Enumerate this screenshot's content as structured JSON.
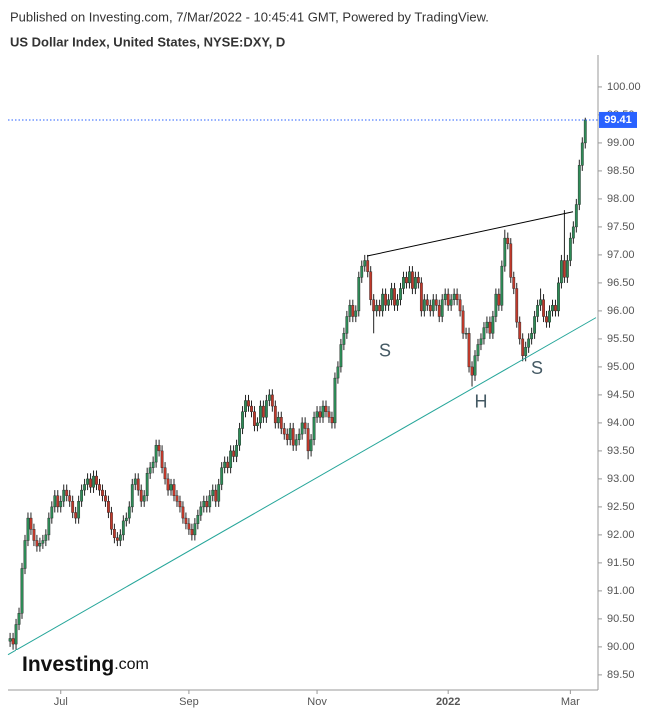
{
  "header": {
    "published": "Published on Investing.com, 7/Mar/2022 - 10:45:41 GMT, Powered by TradingView.",
    "logo_brand": "Investing",
    "logo_suffix": ".com"
  },
  "chart_data": {
    "type": "candlestick",
    "title": "US Dollar Index, United States, NYSE:DXY, D",
    "open": [
      90.1,
      90.15,
      90.05,
      90.4,
      90.6,
      91.4,
      91.9,
      92.3,
      92.1,
      91.9,
      91.8,
      91.85,
      91.9,
      92.0,
      92.3,
      92.5,
      92.7,
      92.5,
      92.6,
      92.8,
      92.7,
      92.6,
      92.4,
      92.3,
      92.6,
      92.8,
      92.9,
      93.0,
      92.85,
      93.05,
      92.9,
      92.8,
      92.7,
      92.6,
      92.4,
      92.1,
      91.95,
      91.9,
      92.0,
      92.25,
      92.3,
      92.5,
      92.9,
      93.0,
      92.8,
      92.6,
      92.7,
      93.1,
      93.2,
      93.3,
      93.6,
      93.5,
      93.2,
      93.0,
      92.8,
      92.9,
      92.7,
      92.6,
      92.5,
      92.3,
      92.2,
      92.1,
      92.0,
      92.2,
      92.35,
      92.5,
      92.6,
      92.5,
      92.7,
      92.8,
      92.6,
      92.9,
      93.2,
      93.3,
      93.2,
      93.5,
      93.4,
      93.6,
      93.9,
      94.2,
      94.4,
      94.3,
      94.2,
      93.95,
      94.0,
      94.3,
      94.1,
      94.4,
      94.5,
      94.3,
      94.0,
      94.1,
      93.9,
      93.8,
      93.7,
      93.9,
      93.6,
      93.7,
      93.8,
      94.0,
      93.9,
      93.5,
      93.7,
      94.1,
      94.2,
      94.1,
      94.3,
      94.2,
      94.1,
      94.0,
      94.8,
      95.0,
      95.4,
      95.6,
      95.9,
      96.1,
      95.9,
      96.0,
      96.6,
      96.8,
      96.9,
      96.7,
      96.2,
      96.0,
      96.1,
      96.0,
      96.3,
      96.1,
      96.2,
      96.4,
      96.1,
      96.2,
      96.4,
      96.6,
      96.5,
      96.7,
      96.4,
      96.6,
      96.5,
      96.0,
      96.2,
      96.1,
      96.0,
      96.2,
      96.1,
      95.9,
      96.2,
      96.3,
      96.1,
      96.2,
      96.3,
      96.2,
      96.0,
      95.6,
      95.6,
      95.0,
      94.85,
      95.2,
      95.4,
      95.5,
      95.7,
      95.8,
      95.6,
      95.9,
      96.3,
      96.1,
      96.8,
      97.3,
      97.2,
      96.6,
      96.4,
      95.8,
      95.5,
      95.2,
      95.35,
      95.5,
      95.6,
      95.9,
      96.1,
      96.2,
      95.9,
      95.8,
      96.0,
      96.1,
      96.0,
      96.5,
      96.9,
      96.6,
      96.9,
      97.3,
      97.5,
      97.9,
      98.6,
      99.0
    ],
    "high": [
      90.25,
      90.25,
      90.5,
      90.7,
      91.5,
      92.0,
      92.4,
      92.4,
      92.2,
      92.0,
      91.95,
      92.0,
      92.1,
      92.4,
      92.6,
      92.8,
      92.8,
      92.7,
      92.9,
      92.9,
      92.8,
      92.7,
      92.5,
      92.7,
      92.9,
      93.0,
      93.1,
      93.1,
      93.15,
      93.15,
      93.0,
      92.9,
      92.8,
      92.7,
      92.5,
      92.2,
      92.05,
      92.1,
      92.35,
      92.4,
      92.6,
      93.0,
      93.1,
      93.1,
      92.9,
      92.8,
      93.2,
      93.3,
      93.4,
      93.7,
      93.7,
      93.6,
      93.3,
      93.1,
      93.0,
      93.0,
      92.8,
      92.7,
      92.6,
      92.4,
      92.3,
      92.2,
      92.3,
      92.45,
      92.6,
      92.7,
      92.7,
      92.8,
      92.9,
      92.9,
      93.0,
      93.3,
      93.4,
      93.4,
      93.6,
      93.6,
      93.7,
      94.0,
      94.3,
      94.5,
      94.5,
      94.4,
      94.3,
      94.1,
      94.4,
      94.4,
      94.5,
      94.6,
      94.6,
      94.4,
      94.2,
      94.2,
      94.0,
      93.9,
      94.0,
      94.0,
      93.8,
      93.9,
      94.1,
      94.1,
      94.0,
      93.8,
      94.2,
      94.3,
      94.3,
      94.4,
      94.4,
      94.3,
      94.2,
      94.9,
      95.1,
      95.5,
      95.7,
      96.0,
      96.2,
      96.2,
      96.1,
      96.7,
      96.9,
      97.0,
      97.0,
      96.8,
      96.3,
      96.2,
      96.2,
      96.4,
      96.4,
      96.3,
      96.5,
      96.5,
      96.3,
      96.5,
      96.7,
      96.7,
      96.8,
      96.8,
      96.7,
      96.7,
      96.6,
      96.3,
      96.3,
      96.2,
      96.3,
      96.3,
      96.2,
      96.3,
      96.4,
      96.4,
      96.3,
      96.4,
      96.4,
      96.3,
      96.1,
      95.7,
      95.7,
      95.1,
      95.3,
      95.5,
      95.6,
      95.8,
      95.9,
      95.9,
      96.0,
      96.4,
      96.4,
      96.9,
      97.45,
      97.4,
      97.3,
      96.7,
      96.5,
      95.9,
      95.6,
      95.45,
      95.6,
      95.7,
      96.0,
      96.2,
      96.4,
      96.3,
      96.0,
      96.1,
      96.2,
      96.2,
      96.6,
      97.0,
      97.8,
      97.0,
      97.4,
      97.6,
      98.0,
      98.7,
      99.1,
      99.45
    ],
    "low": [
      90.0,
      89.95,
      89.95,
      90.3,
      90.5,
      91.3,
      91.8,
      92.0,
      91.8,
      91.7,
      91.7,
      91.75,
      91.8,
      91.9,
      92.2,
      92.4,
      92.4,
      92.4,
      92.5,
      92.6,
      92.5,
      92.3,
      92.2,
      92.2,
      92.5,
      92.7,
      92.8,
      92.75,
      92.75,
      92.8,
      92.7,
      92.6,
      92.5,
      92.3,
      92.0,
      91.85,
      91.8,
      91.8,
      91.9,
      92.15,
      92.2,
      92.4,
      92.8,
      92.7,
      92.5,
      92.5,
      92.6,
      93.0,
      93.1,
      93.2,
      93.4,
      93.1,
      92.9,
      92.7,
      92.7,
      92.6,
      92.5,
      92.4,
      92.2,
      92.1,
      92.0,
      91.9,
      91.9,
      92.1,
      92.25,
      92.4,
      92.4,
      92.4,
      92.6,
      92.5,
      92.5,
      92.8,
      93.1,
      93.1,
      93.1,
      93.3,
      93.3,
      93.5,
      93.8,
      94.1,
      94.2,
      94.1,
      93.85,
      93.85,
      93.9,
      94.0,
      94.0,
      94.3,
      94.2,
      93.9,
      93.9,
      93.8,
      93.7,
      93.6,
      93.6,
      93.5,
      93.5,
      93.6,
      93.7,
      93.8,
      93.35,
      93.4,
      93.6,
      94.0,
      94.0,
      94.0,
      94.1,
      94.0,
      93.9,
      93.9,
      94.7,
      94.9,
      95.3,
      95.5,
      95.8,
      95.8,
      95.8,
      95.9,
      96.5,
      96.7,
      96.6,
      96.1,
      95.6,
      95.9,
      95.9,
      95.9,
      96.0,
      96.0,
      96.1,
      96.0,
      96.0,
      96.1,
      96.3,
      96.4,
      96.4,
      96.3,
      96.3,
      96.4,
      95.9,
      95.9,
      96.0,
      95.9,
      95.9,
      96.0,
      95.8,
      95.8,
      96.1,
      96.0,
      96.0,
      96.1,
      96.1,
      95.9,
      95.5,
      95.5,
      94.9,
      94.65,
      94.75,
      95.1,
      95.3,
      95.4,
      95.6,
      95.5,
      95.5,
      95.8,
      96.0,
      96.0,
      96.7,
      97.1,
      96.5,
      96.3,
      95.7,
      95.4,
      95.1,
      95.1,
      95.25,
      95.4,
      95.5,
      95.8,
      96.0,
      95.8,
      95.7,
      95.7,
      95.9,
      95.9,
      95.9,
      96.4,
      96.5,
      96.5,
      96.8,
      97.2,
      97.4,
      97.8,
      98.5,
      98.9
    ],
    "close": [
      90.15,
      90.05,
      90.4,
      90.6,
      91.4,
      91.9,
      92.3,
      92.1,
      91.9,
      91.8,
      91.85,
      91.9,
      92.0,
      92.3,
      92.5,
      92.7,
      92.5,
      92.6,
      92.8,
      92.7,
      92.6,
      92.4,
      92.3,
      92.6,
      92.8,
      92.9,
      93.0,
      92.85,
      93.05,
      92.9,
      92.8,
      92.7,
      92.6,
      92.4,
      92.1,
      91.95,
      91.9,
      92.0,
      92.25,
      92.3,
      92.5,
      92.9,
      93.0,
      92.8,
      92.6,
      92.7,
      93.1,
      93.2,
      93.3,
      93.6,
      93.5,
      93.2,
      93.0,
      92.8,
      92.9,
      92.7,
      92.6,
      92.5,
      92.3,
      92.2,
      92.1,
      92.0,
      92.2,
      92.35,
      92.5,
      92.6,
      92.5,
      92.7,
      92.8,
      92.6,
      92.9,
      93.2,
      93.3,
      93.2,
      93.5,
      93.4,
      93.6,
      93.9,
      94.2,
      94.4,
      94.3,
      94.2,
      93.95,
      94.0,
      94.3,
      94.1,
      94.4,
      94.5,
      94.3,
      94.0,
      94.1,
      93.9,
      93.8,
      93.7,
      93.9,
      93.6,
      93.7,
      93.8,
      94.0,
      93.9,
      93.5,
      93.7,
      94.1,
      94.2,
      94.1,
      94.3,
      94.2,
      94.1,
      94.0,
      94.8,
      95.0,
      95.4,
      95.6,
      95.9,
      96.1,
      95.9,
      96.0,
      96.6,
      96.8,
      96.9,
      96.7,
      96.2,
      96.0,
      96.1,
      96.0,
      96.3,
      96.1,
      96.2,
      96.4,
      96.1,
      96.2,
      96.4,
      96.6,
      96.5,
      96.7,
      96.4,
      96.6,
      96.5,
      96.0,
      96.2,
      96.1,
      96.0,
      96.2,
      96.1,
      95.9,
      96.2,
      96.3,
      96.1,
      96.2,
      96.3,
      96.2,
      96.0,
      95.6,
      95.6,
      95.0,
      94.85,
      95.2,
      95.4,
      95.5,
      95.7,
      95.8,
      95.6,
      95.9,
      96.3,
      96.1,
      96.8,
      97.3,
      97.2,
      96.6,
      96.4,
      95.8,
      95.5,
      95.2,
      95.35,
      95.5,
      95.6,
      95.9,
      96.1,
      96.2,
      95.9,
      95.8,
      96.0,
      96.1,
      96.0,
      96.5,
      96.9,
      96.6,
      96.9,
      97.3,
      97.5,
      97.9,
      98.6,
      99.0,
      99.41
    ],
    "up_color": "#2e8b57",
    "down_color": "#c0392b",
    "xlim": [
      -0.7,
      196.6
    ],
    "xticks": [
      {
        "value": 17,
        "label": "Jul"
      },
      {
        "value": 60,
        "label": "Sep"
      },
      {
        "value": 103,
        "label": "Nov"
      },
      {
        "value": 147,
        "label": "2022"
      },
      {
        "value": 188,
        "label": "Mar"
      }
    ],
    "ylim": [
      89.23,
      100.57
    ],
    "yticks": [
      {
        "value": 89.5,
        "label": "89.50"
      },
      {
        "value": 90,
        "label": "90.00"
      },
      {
        "value": 90.5,
        "label": "90.50"
      },
      {
        "value": 91,
        "label": "91.00"
      },
      {
        "value": 91.5,
        "label": "91.50"
      },
      {
        "value": 92,
        "label": "92.00"
      },
      {
        "value": 92.5,
        "label": "92.50"
      },
      {
        "value": 93,
        "label": "93.00"
      },
      {
        "value": 93.5,
        "label": "93.50"
      },
      {
        "value": 94,
        "label": "94.00"
      },
      {
        "value": 94.5,
        "label": "94.50"
      },
      {
        "value": 95,
        "label": "95.00"
      },
      {
        "value": 95.5,
        "label": "95.50"
      },
      {
        "value": 96,
        "label": "96.00"
      },
      {
        "value": 96.5,
        "label": "96.50"
      },
      {
        "value": 97,
        "label": "97.00"
      },
      {
        "value": 97.5,
        "label": "97.50"
      },
      {
        "value": 98,
        "label": "98.00"
      },
      {
        "value": 98.5,
        "label": "98.50"
      },
      {
        "value": 99,
        "label": "99.00"
      },
      {
        "value": 99.5,
        "label": "99.50"
      },
      {
        "value": 100,
        "label": "100.00"
      }
    ],
    "price_line": {
      "value": 99.41,
      "color": "#2962ff"
    },
    "trendlines": [
      {
        "color": "#26a69a",
        "x": [
          -0.7,
          196.6
        ],
        "y": [
          89.86,
          95.88
        ]
      },
      {
        "color": "#000000",
        "x": [
          119.8,
          188.9
        ],
        "y": [
          96.98,
          97.77
        ]
      }
    ],
    "annotations": [
      {
        "text": "S",
        "x": 125.8,
        "y": 95.27
      },
      {
        "text": "H",
        "x": 158,
        "y": 94.36
      },
      {
        "text": "S",
        "x": 176.8,
        "y": 94.96
      }
    ]
  }
}
